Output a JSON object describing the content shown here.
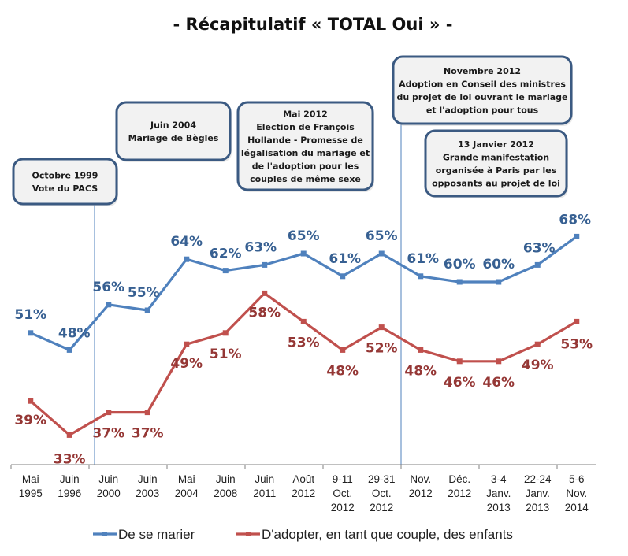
{
  "chart_data": {
    "type": "line",
    "title": "- Récapitulatif « TOTAL Oui » -",
    "xlabel": "",
    "ylabel": "",
    "ylim": [
      30,
      72
    ],
    "grid": false,
    "legend_position": "bottom",
    "categories": [
      [
        "Mai",
        "1995"
      ],
      [
        "Juin",
        "1996"
      ],
      [
        "Juin",
        "2000"
      ],
      [
        "Juin",
        "2003"
      ],
      [
        "Mai",
        "2004"
      ],
      [
        "Juin",
        "2008"
      ],
      [
        "Juin",
        "2011"
      ],
      [
        "Août",
        "2012"
      ],
      [
        "9-11",
        "Oct.",
        "2012"
      ],
      [
        "29-31",
        "Oct.",
        "2012"
      ],
      [
        "Nov.",
        "2012"
      ],
      [
        "Déc.",
        "2012"
      ],
      [
        "3-4",
        "Janv.",
        "2013"
      ],
      [
        "22-24",
        "Janv.",
        "2013"
      ],
      [
        "5-6",
        "Nov.",
        "2014"
      ]
    ],
    "series": [
      {
        "name": "De se marier",
        "color": "#4F81BD",
        "label_color": "#376092",
        "values": [
          51,
          48,
          56,
          55,
          64,
          62,
          63,
          65,
          61,
          65,
          61,
          60,
          60,
          63,
          68
        ],
        "labels": [
          "51%",
          "48%",
          "56%",
          "55%",
          "64%",
          "62%",
          "63%",
          "65%",
          "61%",
          "65%",
          "61%",
          "60%",
          "60%",
          "63%",
          "68%"
        ]
      },
      {
        "name": "D'adopter, en tant que couple, des enfants",
        "color": "#C0504D",
        "label_color": "#953735",
        "values": [
          39,
          33,
          37,
          37,
          49,
          51,
          58,
          53,
          48,
          52,
          48,
          46,
          46,
          49,
          53
        ],
        "labels": [
          "39%",
          "33%",
          "37%",
          "37%",
          "49%",
          "51%",
          "58%",
          "53%",
          "48%",
          "52%",
          "48%",
          "46%",
          "46%",
          "49%",
          "53%"
        ]
      }
    ],
    "annotations": [
      {
        "name": "callout-octobre-1999",
        "after_category_index": 1,
        "lines": [
          "Octobre 1999",
          "Vote du PACS"
        ]
      },
      {
        "name": "callout-juin-2004",
        "after_category_index": 4,
        "lines": [
          "Juin 2004",
          "Mariage de Bègles"
        ]
      },
      {
        "name": "callout-mai-2012",
        "after_category_index": 6,
        "lines": [
          "Mai 2012",
          "Election de François",
          "Hollande - Promesse de",
          "légalisation du mariage et",
          "de l'adoption pour les",
          "couples de même sexe"
        ]
      },
      {
        "name": "callout-novembre-2012",
        "after_category_index": 9,
        "lines": [
          "Novembre 2012",
          "Adoption en Conseil des ministres",
          "du projet de loi ouvrant le mariage",
          "et l'adoption pour tous"
        ]
      },
      {
        "name": "callout-13-janvier",
        "after_category_index": 12,
        "lines": [
          "13 Janvier 2012",
          "Grande manifestation",
          "organisée à Paris par les",
          "opposants au projet de loi"
        ]
      }
    ],
    "colors": {
      "event_line": "#4F81BD",
      "callout_border": "#3B5A82",
      "callout_fill": "#F2F2F2",
      "axis": "#808080"
    }
  }
}
